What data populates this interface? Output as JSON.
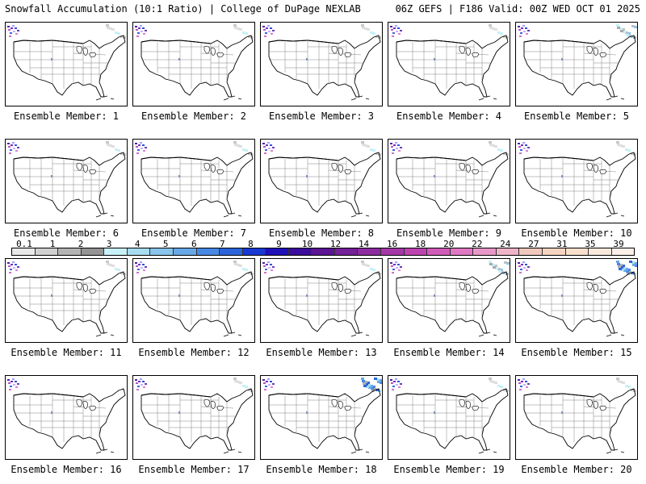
{
  "header": {
    "left": "Snowfall Accumulation (10:1 Ratio) | College of DuPage NEXLAB",
    "right": "06Z GEFS | F186 Valid: 00Z WED OCT 01 2025"
  },
  "members": [
    {
      "label": "Ensemble Member: 1",
      "ne_snow": "light"
    },
    {
      "label": "Ensemble Member: 2",
      "ne_snow": "light"
    },
    {
      "label": "Ensemble Member: 3",
      "ne_snow": "light"
    },
    {
      "label": "Ensemble Member: 4",
      "ne_snow": "light"
    },
    {
      "label": "Ensemble Member: 5",
      "ne_snow": "medium"
    },
    {
      "label": "Ensemble Member: 6",
      "ne_snow": "light"
    },
    {
      "label": "Ensemble Member: 7",
      "ne_snow": "light"
    },
    {
      "label": "Ensemble Member: 8",
      "ne_snow": "light"
    },
    {
      "label": "Ensemble Member: 9",
      "ne_snow": "light"
    },
    {
      "label": "Ensemble Member: 10",
      "ne_snow": "light"
    },
    {
      "label": "Ensemble Member: 11",
      "ne_snow": "light"
    },
    {
      "label": "Ensemble Member: 12",
      "ne_snow": "light"
    },
    {
      "label": "Ensemble Member: 13",
      "ne_snow": "light"
    },
    {
      "label": "Ensemble Member: 14",
      "ne_snow": "medium"
    },
    {
      "label": "Ensemble Member: 15",
      "ne_snow": "heavy"
    },
    {
      "label": "Ensemble Member: 16",
      "ne_snow": "none"
    },
    {
      "label": "Ensemble Member: 17",
      "ne_snow": "light"
    },
    {
      "label": "Ensemble Member: 18",
      "ne_snow": "heavy"
    },
    {
      "label": "Ensemble Member: 19",
      "ne_snow": "light"
    },
    {
      "label": "Ensemble Member: 20",
      "ne_snow": "light"
    }
  ],
  "colorbar": {
    "labels": [
      "0.1",
      "1",
      "2",
      "3",
      "4",
      "5",
      "6",
      "7",
      "8",
      "9",
      "10",
      "12",
      "14",
      "16",
      "18",
      "20",
      "22",
      "24",
      "27",
      "31",
      "35",
      "39"
    ],
    "colors": [
      "#e8e8e8",
      "#d0d0d0",
      "#b4b4b4",
      "#949494",
      "#c8f0f8",
      "#a8dcf0",
      "#88c4ec",
      "#68a8e8",
      "#4888e4",
      "#2c64dc",
      "#1838d4",
      "#2010b8",
      "#3c0c9c",
      "#5a1494",
      "#742098",
      "#8c2ca0",
      "#a438a8",
      "#bc44b0",
      "#d05cb8",
      "#e078c4",
      "#e898c8",
      "#f0b4c8",
      "#f0c8bc",
      "#f4d4c0",
      "#f8e0cc",
      "#fbeadc",
      "#fdf0e8"
    ]
  }
}
